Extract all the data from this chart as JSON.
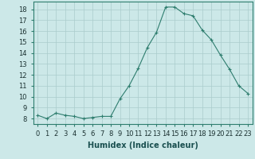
{
  "x": [
    0,
    1,
    2,
    3,
    4,
    5,
    6,
    7,
    8,
    9,
    10,
    11,
    12,
    13,
    14,
    15,
    16,
    17,
    18,
    19,
    20,
    21,
    22,
    23
  ],
  "y": [
    8.3,
    8.0,
    8.5,
    8.3,
    8.2,
    8.0,
    8.1,
    8.2,
    8.2,
    9.8,
    11.0,
    12.6,
    14.5,
    15.9,
    18.2,
    18.2,
    17.6,
    17.4,
    16.1,
    15.2,
    13.8,
    12.5,
    11.0,
    10.3
  ],
  "xlabel": "Humidex (Indice chaleur)",
  "line_color": "#2e7d6e",
  "marker": "+",
  "marker_size": 3,
  "bg_color": "#cce8e8",
  "grid_color": "#aacccc",
  "ylim": [
    7.5,
    18.7
  ],
  "xlim": [
    -0.5,
    23.5
  ],
  "yticks": [
    8,
    9,
    10,
    11,
    12,
    13,
    14,
    15,
    16,
    17,
    18
  ],
  "xticks": [
    0,
    1,
    2,
    3,
    4,
    5,
    6,
    7,
    8,
    9,
    10,
    11,
    12,
    13,
    14,
    15,
    16,
    17,
    18,
    19,
    20,
    21,
    22,
    23
  ],
  "xtick_labels": [
    "0",
    "1",
    "2",
    "3",
    "4",
    "5",
    "6",
    "7",
    "8",
    "9",
    "10",
    "11",
    "12",
    "13",
    "14",
    "15",
    "16",
    "17",
    "18",
    "19",
    "20",
    "21",
    "22",
    "23"
  ],
  "xlabel_fontsize": 7,
  "tick_fontsize": 6
}
